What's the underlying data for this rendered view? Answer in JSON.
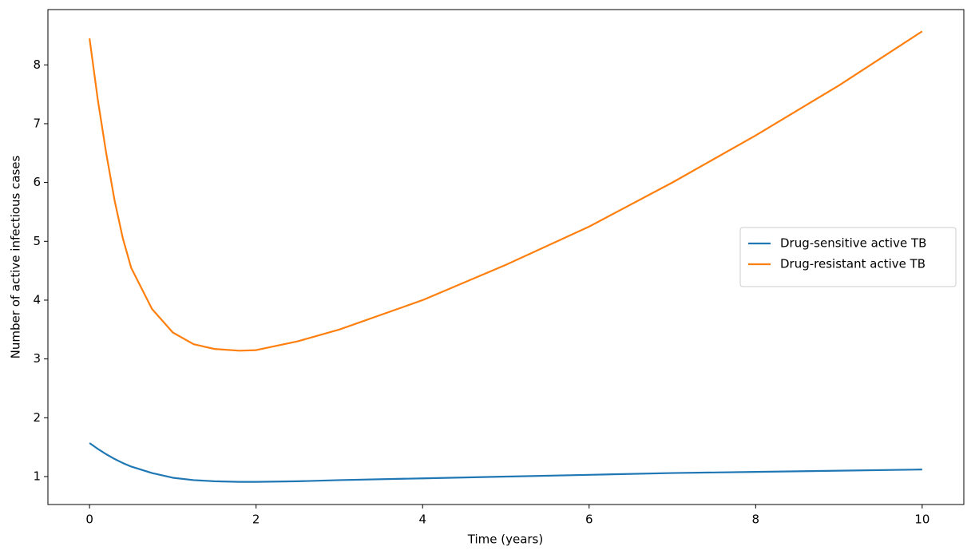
{
  "chart_data": {
    "type": "line",
    "x_label": "Time (years)",
    "y_label": "Number of active infectious cases",
    "x": [
      0,
      0.1,
      0.2,
      0.3,
      0.4,
      0.5,
      0.75,
      1,
      1.25,
      1.5,
      1.8,
      2,
      2.5,
      3,
      4,
      5,
      6,
      7,
      8,
      9,
      10
    ],
    "series": [
      {
        "name": "Drug-sensitive active TB",
        "color": "#1f77b4",
        "values": [
          1.57,
          1.47,
          1.38,
          1.3,
          1.23,
          1.17,
          1.06,
          0.98,
          0.94,
          0.92,
          0.91,
          0.91,
          0.92,
          0.94,
          0.97,
          1.0,
          1.03,
          1.06,
          1.08,
          1.1,
          1.12
        ]
      },
      {
        "name": "Drug-resistant active TB",
        "color": "#ff7f0e",
        "values": [
          8.45,
          7.4,
          6.5,
          5.7,
          5.05,
          4.55,
          3.85,
          3.45,
          3.25,
          3.17,
          3.14,
          3.15,
          3.3,
          3.5,
          4.0,
          4.6,
          5.25,
          6.0,
          6.8,
          7.65,
          8.57
        ]
      }
    ],
    "xlim": [
      -0.5,
      10.5
    ],
    "xticks": [
      0,
      2,
      4,
      6,
      8,
      10
    ],
    "ylim": [
      0.525,
      8.94
    ],
    "yticks": [
      1,
      2,
      3,
      4,
      5,
      6,
      7,
      8
    ],
    "grid": false,
    "legend": "center right"
  }
}
